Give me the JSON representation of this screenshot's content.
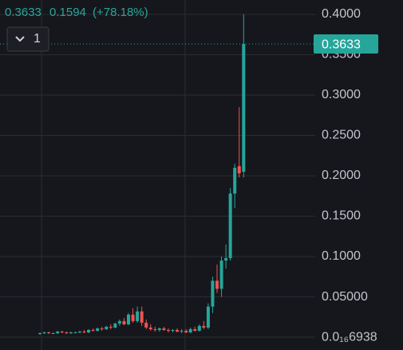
{
  "chart_data": {
    "type": "candlestick",
    "interval": "1",
    "change": 0.1594,
    "change_percent": {
      "value": 78.18,
      "label": "(+78.18%)"
    },
    "up_color": "#26a69a",
    "down_color": "#ef5350",
    "grid": true,
    "ylim": [
      -0.0158,
      0.4178
    ],
    "yticks": [
      {
        "value": 6.938e-17,
        "label": "0.0₁₆6938"
      },
      {
        "value": 0.05,
        "label": "0.05000"
      },
      {
        "value": 0.1,
        "label": "0.1000"
      },
      {
        "value": 0.15,
        "label": "0.1500"
      },
      {
        "value": 0.2,
        "label": "0.2000"
      },
      {
        "value": 0.25,
        "label": "0.2500"
      },
      {
        "value": 0.3,
        "label": "0.3000"
      },
      {
        "value": 0.35,
        "label": "0.3500"
      },
      {
        "value": 0.4,
        "label": "0.4000"
      }
    ],
    "open": [
      0.004,
      0.005,
      0.006,
      0.005,
      0.005,
      0.007,
      0.006,
      0.005,
      0.006,
      0.006,
      0.007,
      0.006,
      0.009,
      0.008,
      0.011,
      0.01,
      0.013,
      0.012,
      0.017,
      0.02,
      0.016,
      0.028,
      0.02,
      0.032,
      0.018,
      0.012,
      0.01,
      0.009,
      0.011,
      0.009,
      0.008,
      0.009,
      0.007,
      0.008,
      0.006,
      0.01,
      0.008,
      0.014,
      0.012,
      0.038,
      0.07,
      0.06,
      0.095,
      0.098,
      0.178,
      0.212,
      0.205
    ],
    "high": [
      0.006,
      0.007,
      0.007,
      0.006,
      0.008,
      0.008,
      0.007,
      0.007,
      0.007,
      0.008,
      0.009,
      0.01,
      0.011,
      0.012,
      0.013,
      0.014,
      0.016,
      0.018,
      0.022,
      0.024,
      0.03,
      0.036,
      0.038,
      0.038,
      0.022,
      0.016,
      0.013,
      0.012,
      0.013,
      0.011,
      0.01,
      0.011,
      0.01,
      0.01,
      0.012,
      0.013,
      0.016,
      0.02,
      0.042,
      0.075,
      0.09,
      0.1,
      0.115,
      0.185,
      0.215,
      0.285,
      0.4
    ],
    "low": [
      0.003,
      0.004,
      0.004,
      0.004,
      0.004,
      0.005,
      0.004,
      0.004,
      0.005,
      0.005,
      0.005,
      0.005,
      0.007,
      0.007,
      0.008,
      0.009,
      0.01,
      0.011,
      0.014,
      0.015,
      0.015,
      0.018,
      0.018,
      0.014,
      0.01,
      0.008,
      0.007,
      0.007,
      0.008,
      0.006,
      0.006,
      0.006,
      0.005,
      0.005,
      0.005,
      0.007,
      0.007,
      0.01,
      0.01,
      0.03,
      0.055,
      0.05,
      0.085,
      0.095,
      0.16,
      0.198,
      0.198
    ],
    "close": [
      0.005,
      0.006,
      0.005,
      0.005,
      0.007,
      0.006,
      0.005,
      0.006,
      0.006,
      0.007,
      0.006,
      0.009,
      0.008,
      0.011,
      0.01,
      0.013,
      0.012,
      0.017,
      0.02,
      0.016,
      0.028,
      0.02,
      0.032,
      0.018,
      0.012,
      0.01,
      0.009,
      0.011,
      0.009,
      0.008,
      0.009,
      0.007,
      0.008,
      0.006,
      0.01,
      0.008,
      0.014,
      0.012,
      0.038,
      0.07,
      0.06,
      0.095,
      0.098,
      0.178,
      0.21,
      0.203,
      0.3633
    ]
  }
}
